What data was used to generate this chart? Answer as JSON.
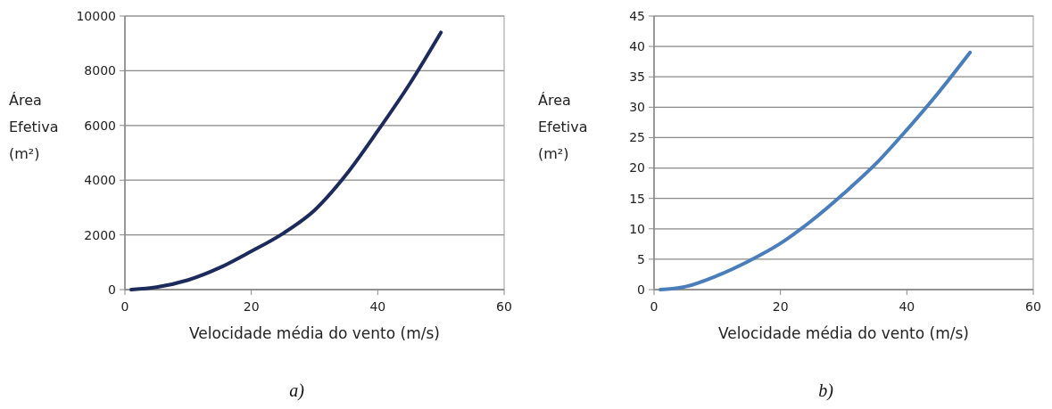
{
  "chart_data": [
    {
      "type": "line",
      "xlabel": "Velocidade média do vento (m/s)",
      "ylabel": "Área Efetiva (m²)",
      "annotations": [
        "a)"
      ],
      "x": [
        1,
        5,
        10,
        15,
        20,
        25,
        30,
        35,
        40,
        45,
        50
      ],
      "series": [
        {
          "color": "#1c2a5c",
          "values": [
            0,
            90,
            350,
            800,
            1400,
            2050,
            2900,
            4200,
            5800,
            7500,
            9400
          ]
        }
      ],
      "xlim": [
        0,
        60
      ],
      "xticks": [
        0,
        20,
        40,
        60
      ],
      "ylim": [
        0,
        10000
      ],
      "yticks": [
        0,
        2000,
        4000,
        6000,
        8000,
        10000
      ],
      "grid": "y"
    },
    {
      "type": "line",
      "xlabel": "Velocidade média do vento (m/s)",
      "ylabel": "Área Efetiva (m²)",
      "annotations": [
        "b)"
      ],
      "x": [
        1,
        5,
        10,
        15,
        20,
        25,
        30,
        35,
        40,
        45,
        50
      ],
      "series": [
        {
          "color": "#4a7ebb",
          "values": [
            0,
            0.5,
            2.3,
            4.7,
            7.6,
            11.4,
            15.8,
            20.6,
            26.3,
            32.4,
            39
          ]
        }
      ],
      "xlim": [
        0,
        60
      ],
      "xticks": [
        0,
        20,
        40,
        60
      ],
      "ylim": [
        0,
        45
      ],
      "yticks": [
        0,
        5,
        10,
        15,
        20,
        25,
        30,
        35,
        40,
        45
      ],
      "grid": "y"
    }
  ]
}
